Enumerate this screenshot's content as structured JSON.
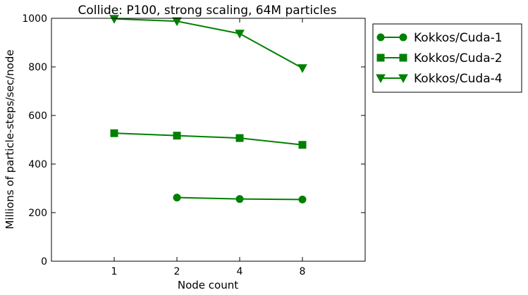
{
  "chart_data": {
    "type": "line",
    "title": "Collide: P100, strong scaling, 64M particles",
    "xlabel": "Node count",
    "ylabel": "Millions of particle-steps/sec/node",
    "x_categories": [
      "1",
      "2",
      "4",
      "8"
    ],
    "xlim": [
      0,
      5
    ],
    "ylim": [
      0,
      1000
    ],
    "yticks": [
      0,
      200,
      400,
      600,
      800,
      1000
    ],
    "grid": false,
    "legend_position": "outside-right-top",
    "series_color": "#008000",
    "series": [
      {
        "name": "Kokkos/Cuda-1",
        "marker": "circle",
        "x": [
          "2",
          "4",
          "8"
        ],
        "values": [
          262,
          256,
          254
        ]
      },
      {
        "name": "Kokkos/Cuda-2",
        "marker": "square",
        "x": [
          "1",
          "2",
          "4",
          "8"
        ],
        "values": [
          527,
          517,
          507,
          479
        ]
      },
      {
        "name": "Kokkos/Cuda-4",
        "marker": "triangle-down",
        "x": [
          "1",
          "2",
          "4",
          "8"
        ],
        "values": [
          998,
          988,
          937,
          795
        ]
      }
    ]
  }
}
